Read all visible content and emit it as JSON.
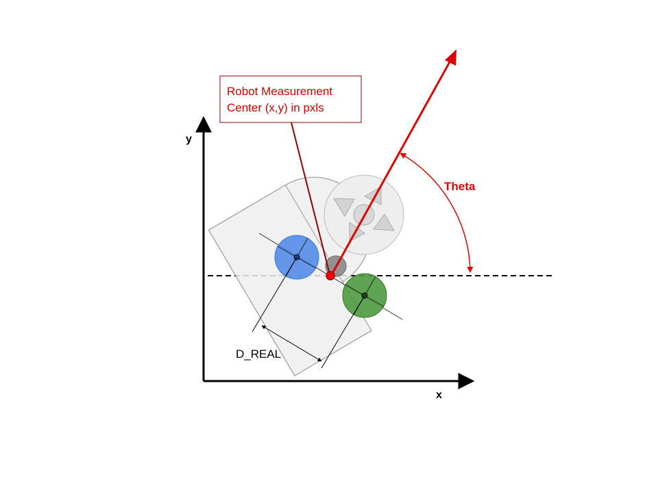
{
  "labels": {
    "callout_line1": "Robot Measurement",
    "callout_line2": "Center (x,y) in pxls",
    "theta": "Theta",
    "d_real": "D_REAL",
    "axis_x": "x",
    "axis_y": "y"
  },
  "colors": {
    "accent_red": "#dd0000",
    "callout_dark_red": "#8b0000",
    "wheel_blue": "#4a86e8",
    "wheel_blue_stroke": "#3c78d8",
    "wheel_green": "#4d9a40",
    "wheel_green_stroke": "#38761d",
    "body_fill": "#efefef",
    "body_stroke": "#999999",
    "axis": "#000000"
  },
  "icons": {
    "directional_pad": "four-triangles-around-circle-icon"
  }
}
